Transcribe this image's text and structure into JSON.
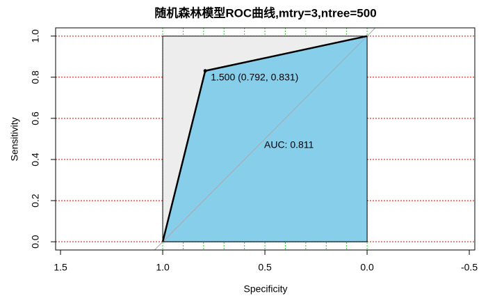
{
  "chart_data": {
    "type": "roc",
    "title": "随机森林模型ROC曲线,mtry=3,ntree=500",
    "x_label": "Specificity",
    "y_label": "Sensitivity",
    "x": [
      1.0,
      0.792,
      0.0
    ],
    "series": [
      {
        "color": "#000000",
        "values": [
          0.0,
          0.831,
          1.0
        ]
      }
    ],
    "auc_color": "#87ceeb",
    "max_auc_color": "#ededed",
    "diagonal_color": "#a9a9a9",
    "annotations": [
      "1.500 (0.792, 0.831)",
      "AUC: 0.811"
    ],
    "xlim": [
      1.524,
      -0.527
    ],
    "ylim": [
      -0.04,
      1.04
    ],
    "xticks": [
      1.5,
      {
        "value": 1.0,
        "label": "1.0"
      },
      0.5,
      {
        "value": 0.0,
        "label": "0.0"
      },
      -0.5
    ],
    "yticks": [
      {
        "value": 0.0,
        "label": "0.0"
      },
      0.2,
      0.4,
      0.6,
      0.8,
      {
        "value": 1.0,
        "label": "1.0"
      }
    ],
    "xgrid": [
      1.0,
      0.9,
      0.8,
      0.7,
      0.6,
      0.5,
      0.4,
      0.3,
      0.2,
      0.1,
      0.0
    ],
    "xgrid_color": "#22cc22",
    "ygrid_color": "#dd0000"
  }
}
